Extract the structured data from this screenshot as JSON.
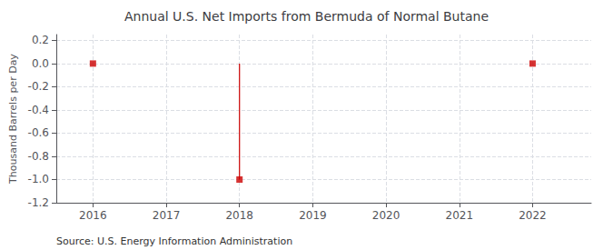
{
  "chart_data": {
    "type": "stem",
    "title": "Annual U.S. Net Imports from Bermuda of Normal Butane",
    "ylabel": "Thousand Barrels per Day",
    "annotations": [
      "Source: U.S. Energy Information Administration"
    ],
    "x": [
      2016,
      2018,
      2022
    ],
    "values": [
      0,
      -1,
      0
    ],
    "color": "#cc0000",
    "marker": "square",
    "xlim": [
      2015.5,
      2022.8
    ],
    "xticks": [
      2016,
      2017,
      2018,
      2019,
      2020,
      2021,
      2022
    ],
    "ylim": [
      -1.2,
      0.25
    ],
    "yticks": [
      0.2,
      {
        "value": 0,
        "label": "0.0"
      },
      -0.2,
      -0.4,
      -0.6,
      -0.8,
      {
        "value": -1.0,
        "label": "-1.0"
      },
      -1.2
    ],
    "grid": true
  }
}
